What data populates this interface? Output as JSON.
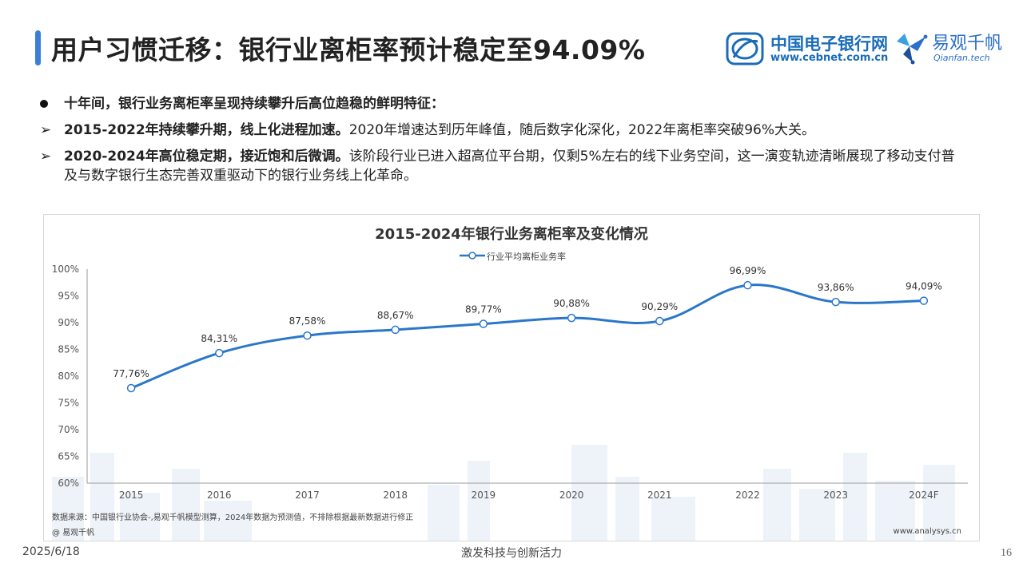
{
  "header": {
    "title": "用户习惯迁移：银行业离柜率预计稳定至94.09%"
  },
  "logos": {
    "cebnet_name": "中国电子银行网",
    "cebnet_url": "www.cebnet.com.cn",
    "qianfan_name": "易观千帆",
    "qianfan_en": "Qianfan.tech"
  },
  "bullets": [
    {
      "bold": "十年间，银行业务离柜率呈现持续攀升后高位趋稳的鲜明特征：",
      "text": ""
    },
    {
      "bold": "2015-2022年持续攀升期，线上化进程加速。",
      "text": "2020年增速达到历年峰值，随后数字化深化，2022年离柜率突破96%大关。"
    },
    {
      "bold": "2020-2024年高位稳定期，接近饱和后微调。",
      "text": "该阶段行业已进入超高位平台期，仅剩5%左右的线下业务空间，这一演变轨迹清晰展现了移动支付普及与数字银行生态完善双重驱动下的银行业务线上化革命。"
    }
  ],
  "chart_data": {
    "type": "line",
    "title": "2015-2024年银行业务离柜率及变化情况",
    "categories": [
      "2015",
      "2016",
      "2017",
      "2018",
      "2019",
      "2020",
      "2021",
      "2022",
      "2023",
      "2024F"
    ],
    "series": [
      {
        "name": "行业平均离柜业务率",
        "values": [
          77.76,
          84.31,
          87.58,
          88.67,
          89.77,
          90.88,
          90.29,
          96.99,
          93.86,
          94.09
        ],
        "labels": [
          "77,76%",
          "84,31%",
          "87,58%",
          "88,67%",
          "89,77%",
          "90,88%",
          "90,29%",
          "96,99%",
          "93,86%",
          "94,09%"
        ],
        "color": "#2a77c9"
      }
    ],
    "ylim": [
      60,
      100
    ],
    "yticks": [
      "60%",
      "65%",
      "70%",
      "75%",
      "80%",
      "85%",
      "90%",
      "95%",
      "100%"
    ],
    "xlabel": "",
    "ylabel": "",
    "legend": "top-center",
    "grid": false
  },
  "chart_notes": {
    "source": "数据来源：中国银行业协会-,易观千帆模型测算，2024年数据为预测值，不排除根据最新数据进行修正",
    "credit": "@ 易观千帆",
    "site": "www.analysys.cn"
  },
  "footer": {
    "date": "2025/6/18",
    "slogan": "激发科技与创新活力",
    "page": "16"
  }
}
